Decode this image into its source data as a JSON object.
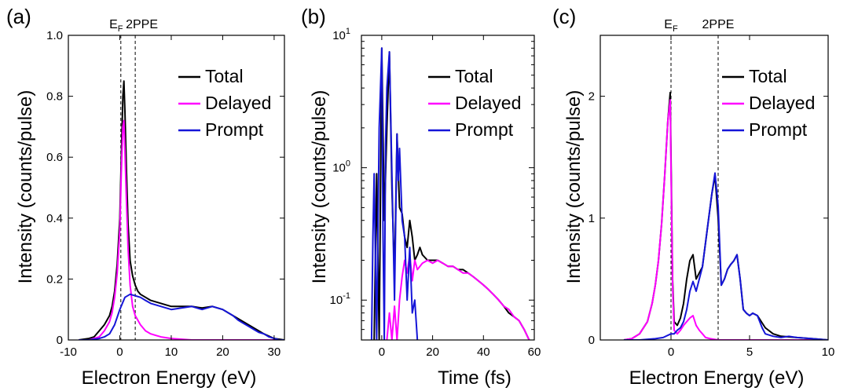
{
  "chart_data": [
    {
      "panel_label": "(a)",
      "type": "line",
      "xlabel": "Electron Energy (eV)",
      "ylabel": "Intensity (counts/pulse)",
      "xlim": [
        -10,
        32
      ],
      "ylim": [
        0,
        1.0
      ],
      "xticks": [
        -10,
        0,
        10,
        20,
        30
      ],
      "yticks": [
        0,
        0.2,
        0.4,
        0.6,
        0.8,
        1.0
      ],
      "x_tick_labels": [
        "-10",
        "0",
        "10",
        "20",
        "30"
      ],
      "y_tick_labels": [
        "0",
        "0.2",
        "0.4",
        "0.6",
        "0.8",
        "1.0"
      ],
      "legend_position": "top-right",
      "annotations": [
        {
          "main": "E",
          "sub": "F",
          "x": 0.2
        },
        {
          "main": "2PPE",
          "x": 3.0
        }
      ],
      "vlines": [
        0.2,
        3.0
      ],
      "series": [
        {
          "name": "Total",
          "color": "#000000",
          "x": [
            -8,
            -6,
            -5,
            -4,
            -3,
            -2,
            -1.5,
            -1,
            -0.5,
            0,
            0.3,
            0.6,
            0.8,
            1.0,
            1.3,
            1.6,
            2.0,
            2.5,
            3,
            3.5,
            4,
            5,
            6,
            8,
            10,
            12,
            14,
            16,
            18,
            20,
            22,
            24,
            26,
            28,
            30,
            32
          ],
          "y": [
            0,
            0.005,
            0.01,
            0.03,
            0.05,
            0.08,
            0.11,
            0.16,
            0.25,
            0.4,
            0.6,
            0.8,
            0.85,
            0.75,
            0.55,
            0.38,
            0.26,
            0.21,
            0.18,
            0.16,
            0.15,
            0.14,
            0.13,
            0.12,
            0.11,
            0.11,
            0.11,
            0.105,
            0.11,
            0.1,
            0.08,
            0.06,
            0.04,
            0.02,
            0.005,
            0
          ]
        },
        {
          "name": "Delayed",
          "color": "#ff00ff",
          "x": [
            -8,
            -6,
            -4,
            -3,
            -2,
            -1.5,
            -1,
            -0.5,
            0,
            0.3,
            0.6,
            0.8,
            1.0,
            1.3,
            1.6,
            2.0,
            2.5,
            3,
            4,
            5,
            6,
            7,
            8,
            10,
            14,
            20,
            26,
            32
          ],
          "y": [
            0,
            0,
            0.01,
            0.03,
            0.06,
            0.09,
            0.14,
            0.22,
            0.36,
            0.55,
            0.7,
            0.72,
            0.62,
            0.45,
            0.3,
            0.18,
            0.11,
            0.08,
            0.05,
            0.03,
            0.02,
            0.015,
            0.01,
            0.005,
            0,
            0,
            0,
            0
          ]
        },
        {
          "name": "Prompt",
          "color": "#1515d8",
          "x": [
            -8,
            -6,
            -4,
            -3,
            -2,
            -1,
            0,
            1,
            2,
            3,
            4,
            5,
            6,
            8,
            10,
            12,
            14,
            16,
            18,
            20,
            21,
            22,
            23,
            24,
            25,
            26,
            27,
            28,
            29,
            30,
            31,
            32
          ],
          "y": [
            0,
            0,
            0.005,
            0.01,
            0.02,
            0.05,
            0.1,
            0.14,
            0.15,
            0.145,
            0.14,
            0.13,
            0.12,
            0.11,
            0.1,
            0.105,
            0.11,
            0.1,
            0.11,
            0.1,
            0.09,
            0.08,
            0.065,
            0.055,
            0.045,
            0.035,
            0.025,
            0.02,
            0.01,
            0.005,
            0,
            0
          ]
        }
      ]
    },
    {
      "panel_label": "(b)",
      "type": "line",
      "xlabel": "Time (fs)",
      "ylabel": "Intensity (counts/pulse)",
      "y_scale": "log",
      "xlim": [
        -8,
        60
      ],
      "ylim": [
        0.05,
        10
      ],
      "xticks": [
        0,
        20,
        40,
        60
      ],
      "x_tick_labels": [
        "0",
        "20",
        "40",
        "60"
      ],
      "y_tick_labels": [
        {
          "main": "10",
          "sup": "-1",
          "value": 0.1
        },
        {
          "main": "10",
          "sup": "0",
          "value": 1
        },
        {
          "main": "10",
          "sup": "1",
          "value": 10
        }
      ],
      "legend_position": "top-right",
      "series": [
        {
          "name": "Total",
          "color": "#000000",
          "x": [
            -3,
            -2,
            -1,
            0,
            1,
            2,
            3,
            4,
            5,
            6,
            7,
            8,
            9,
            10,
            11,
            12,
            13,
            14,
            15,
            16,
            18,
            20,
            22,
            24,
            26,
            28,
            30,
            32,
            34,
            36,
            38,
            40,
            42,
            44,
            46,
            48,
            50,
            52,
            54,
            56,
            58
          ],
          "y": [
            0.05,
            0.9,
            0.05,
            8.0,
            0.4,
            2.0,
            7.5,
            0.7,
            0.15,
            1.8,
            0.5,
            0.45,
            0.3,
            0.25,
            0.4,
            0.3,
            0.2,
            0.22,
            0.25,
            0.22,
            0.2,
            0.2,
            0.2,
            0.19,
            0.18,
            0.18,
            0.17,
            0.17,
            0.16,
            0.15,
            0.14,
            0.13,
            0.12,
            0.11,
            0.1,
            0.09,
            0.08,
            0.075,
            0.07,
            0.06,
            0.05
          ]
        },
        {
          "name": "Delayed",
          "color": "#ff00ff",
          "x": [
            2,
            3,
            4,
            5,
            6,
            7,
            8,
            9,
            10,
            11,
            12,
            13,
            14,
            16,
            18,
            20,
            22,
            24,
            26,
            28,
            30,
            32,
            34,
            36,
            38,
            40,
            42,
            44,
            46,
            48,
            50,
            52,
            54,
            56,
            58
          ],
          "y": [
            0.05,
            0.08,
            0.05,
            0.09,
            0.05,
            0.1,
            0.15,
            0.2,
            0.16,
            0.22,
            0.14,
            0.2,
            0.17,
            0.19,
            0.2,
            0.19,
            0.2,
            0.19,
            0.18,
            0.18,
            0.17,
            0.16,
            0.16,
            0.15,
            0.14,
            0.13,
            0.12,
            0.11,
            0.1,
            0.09,
            0.085,
            0.075,
            0.07,
            0.06,
            0.05
          ]
        },
        {
          "name": "Prompt",
          "color": "#1515d8",
          "x": [
            -4,
            -3.5,
            -3,
            -2,
            -1,
            0,
            0.5,
            1,
            1.5,
            2,
            3,
            4,
            5,
            6,
            6.5,
            7,
            8,
            9,
            10,
            11,
            12,
            13,
            14
          ],
          "y": [
            0.05,
            0.3,
            0.9,
            0.05,
            2.0,
            8.0,
            0.3,
            0.05,
            1.5,
            4.0,
            7.5,
            0.9,
            0.1,
            1.8,
            0.8,
            1.4,
            0.4,
            0.3,
            0.1,
            0.25,
            0.08,
            0.1,
            0.05
          ]
        }
      ]
    },
    {
      "panel_label": "(c)",
      "type": "line",
      "xlabel": "Electron Energy (eV)",
      "ylabel": "Intensity (counts/pulse)",
      "xlim": [
        -4.5,
        10
      ],
      "ylim": [
        0,
        2.5
      ],
      "xticks": [
        0,
        5,
        10
      ],
      "yticks": [
        0,
        1,
        2
      ],
      "x_tick_labels": [
        "0",
        "5",
        "10"
      ],
      "y_tick_labels": [
        "0",
        "1",
        "2"
      ],
      "legend_position": "top-right",
      "annotations": [
        {
          "main": "E",
          "sub": "F",
          "x": 0
        },
        {
          "main": "2PPE",
          "x": 3.0
        }
      ],
      "vlines": [
        0,
        3.0
      ],
      "series": [
        {
          "name": "Total",
          "color": "#000000",
          "x": [
            -3,
            -2.5,
            -2,
            -1.5,
            -1.2,
            -1,
            -0.8,
            -0.6,
            -0.4,
            -0.2,
            -0.05,
            0,
            0.1,
            0.2,
            0.4,
            0.6,
            0.8,
            1.0,
            1.2,
            1.4,
            1.6,
            1.8,
            2.0,
            2.2,
            2.4,
            2.6,
            2.8,
            3.0,
            3.2,
            3.4,
            3.6,
            3.8,
            4.0,
            4.2,
            4.4,
            4.6,
            4.8,
            5,
            5.2,
            5.5,
            6,
            6.5,
            7,
            8,
            9,
            10
          ],
          "y": [
            0,
            0.01,
            0.05,
            0.15,
            0.3,
            0.45,
            0.65,
            0.95,
            1.35,
            1.8,
            2.03,
            1.5,
            0.5,
            0.15,
            0.12,
            0.18,
            0.3,
            0.5,
            0.65,
            0.7,
            0.5,
            0.55,
            0.6,
            0.8,
            1.0,
            1.2,
            1.35,
            1.0,
            0.45,
            0.5,
            0.58,
            0.62,
            0.65,
            0.7,
            0.5,
            0.25,
            0.22,
            0.2,
            0.22,
            0.2,
            0.1,
            0.05,
            0.03,
            0.02,
            0.01,
            0
          ]
        },
        {
          "name": "Delayed",
          "color": "#ff00ff",
          "x": [
            -3,
            -2.5,
            -2,
            -1.5,
            -1.2,
            -1,
            -0.8,
            -0.6,
            -0.4,
            -0.2,
            -0.05,
            0,
            0.1,
            0.2,
            0.4,
            0.6,
            0.8,
            1.0,
            1.2,
            1.4,
            1.6,
            1.8,
            2.0,
            2.2,
            2.5,
            3,
            4,
            5,
            6,
            7,
            8,
            9,
            10
          ],
          "y": [
            0,
            0.01,
            0.05,
            0.15,
            0.3,
            0.45,
            0.65,
            0.95,
            1.35,
            1.8,
            1.97,
            1.4,
            0.45,
            0.08,
            0.05,
            0.08,
            0.12,
            0.15,
            0.18,
            0.2,
            0.12,
            0.08,
            0.05,
            0.02,
            0.01,
            0,
            0,
            0,
            0,
            0,
            0,
            0,
            0
          ]
        },
        {
          "name": "Prompt",
          "color": "#1515d8",
          "x": [
            -3,
            -2,
            -1,
            -0.5,
            0,
            0.2,
            0.4,
            0.6,
            0.8,
            1.0,
            1.2,
            1.4,
            1.6,
            1.8,
            2.0,
            2.2,
            2.4,
            2.6,
            2.8,
            3.0,
            3.2,
            3.4,
            3.6,
            3.8,
            4.0,
            4.2,
            4.4,
            4.6,
            4.8,
            5,
            5.2,
            5.5,
            5.8,
            6,
            6.5,
            7,
            7.5,
            8,
            9,
            10
          ],
          "y": [
            0,
            0,
            0.01,
            0.02,
            0.05,
            0.05,
            0.08,
            0.1,
            0.15,
            0.25,
            0.4,
            0.48,
            0.4,
            0.5,
            0.6,
            0.8,
            1.0,
            1.2,
            1.37,
            1.1,
            0.45,
            0.5,
            0.58,
            0.62,
            0.65,
            0.7,
            0.5,
            0.25,
            0.22,
            0.2,
            0.22,
            0.2,
            0.1,
            0.05,
            0.03,
            0.02,
            0.03,
            0.02,
            0.01,
            0
          ]
        }
      ]
    }
  ]
}
